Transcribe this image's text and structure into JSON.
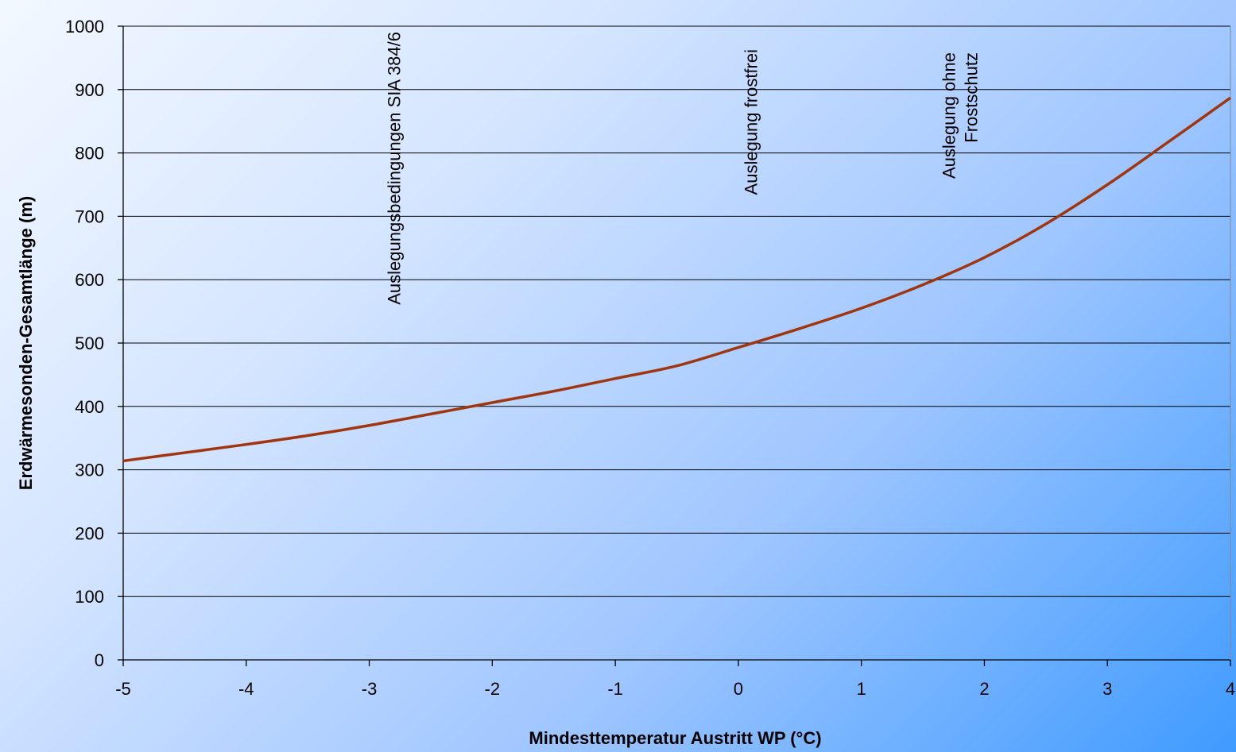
{
  "chart_data": {
    "type": "line",
    "title": "",
    "xlabel": "Mindesttemperatur Austritt WP (°C)",
    "ylabel": "Erdwärmesonden-Gesamtlänge (m)",
    "xlim": [
      -5,
      4
    ],
    "ylim": [
      0,
      1000
    ],
    "x_ticks": [
      -5,
      -4,
      -3,
      -2,
      -1,
      0,
      1,
      2,
      3,
      4
    ],
    "y_ticks": [
      0,
      100,
      200,
      300,
      400,
      500,
      600,
      700,
      800,
      900,
      1000
    ],
    "grid": "horizontal",
    "series": [
      {
        "color": "#a0360f",
        "x": [
          -5,
          -4.5,
          -4,
          -3.5,
          -3,
          -2.5,
          -2,
          -1.5,
          -1,
          -0.5,
          0,
          0.5,
          1,
          1.5,
          2,
          2.5,
          3,
          3.5,
          4
        ],
        "y": [
          314,
          327,
          340,
          354,
          370,
          388,
          406,
          424,
          444,
          464,
          493,
          523,
          555,
          592,
          635,
          688,
          750,
          818,
          887
        ]
      }
    ],
    "annotations": [
      {
        "text": "Auslegungsbedingungen SIA 384/6",
        "x": -2.8
      },
      {
        "text": "Auslegung frostfrei",
        "x": 0.1
      },
      {
        "lines": [
          "Auslegung ohne",
          "Frostschutz"
        ],
        "x": 1.8
      }
    ]
  }
}
